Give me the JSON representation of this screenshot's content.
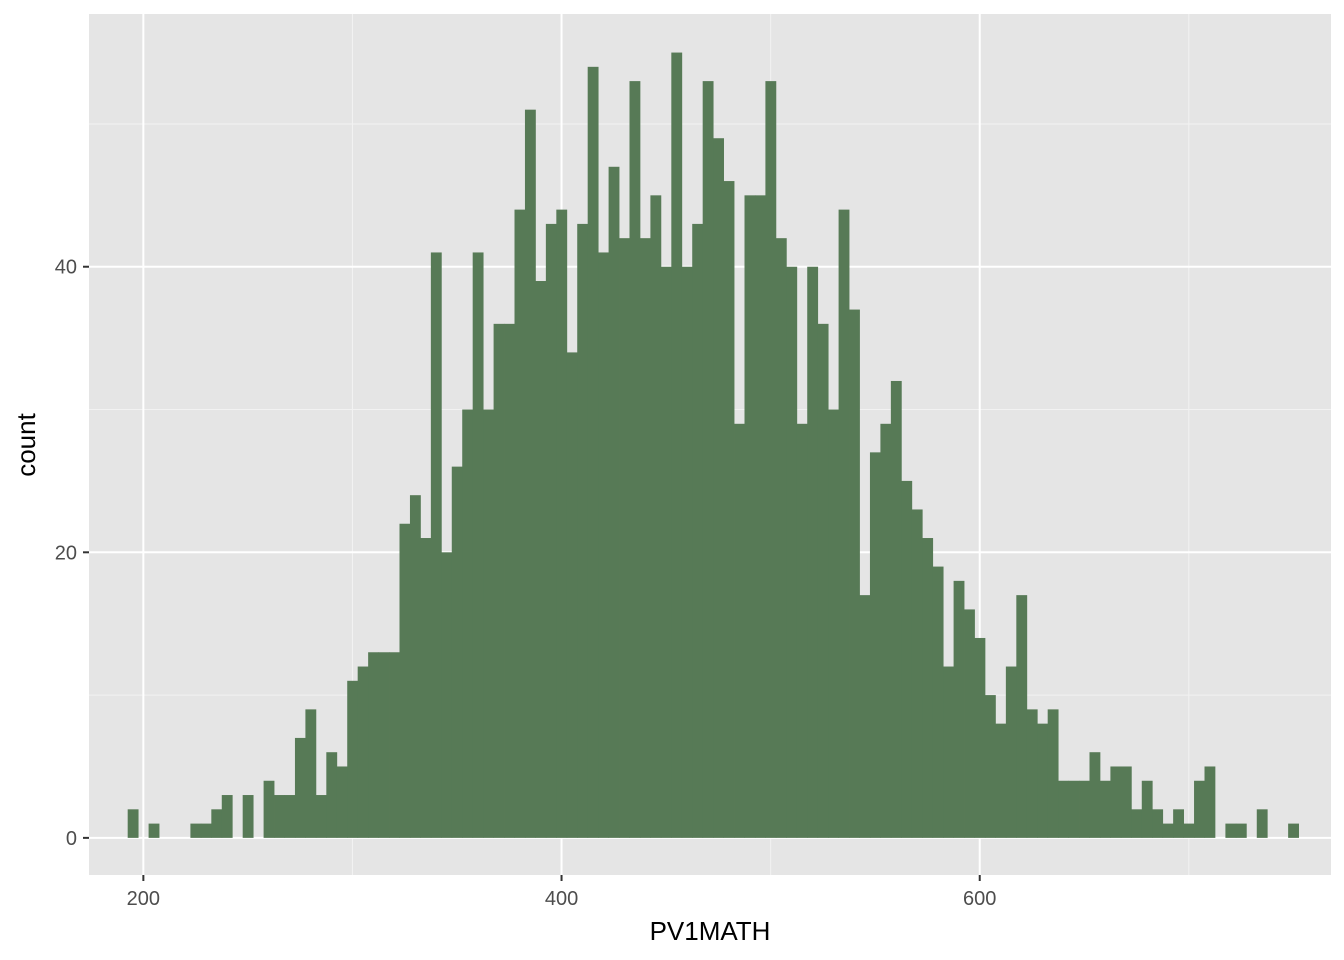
{
  "chart_data": {
    "type": "bar",
    "subtype": "histogram",
    "title": "",
    "xlabel": "PV1MATH",
    "ylabel": "count",
    "xlim": [
      174,
      768
    ],
    "ylim": [
      -2.6,
      57.7
    ],
    "x_ticks": [
      200,
      400,
      600
    ],
    "x_tick_labels": [
      "200",
      "400",
      "600"
    ],
    "y_ticks": [
      0,
      20,
      40
    ],
    "y_tick_labels": [
      "0",
      "20",
      "40"
    ],
    "grid": true,
    "bin_width": 5,
    "bin_start": 192.5,
    "values": [
      2,
      0,
      1,
      0,
      0,
      0,
      1,
      1,
      2,
      3,
      0,
      3,
      0,
      4,
      3,
      3,
      7,
      9,
      3,
      6,
      5,
      11,
      12,
      13,
      13,
      13,
      22,
      24,
      21,
      41,
      20,
      26,
      30,
      41,
      30,
      36,
      36,
      44,
      51,
      39,
      43,
      44,
      34,
      43,
      54,
      41,
      47,
      42,
      53,
      42,
      45,
      40,
      55,
      40,
      43,
      53,
      49,
      46,
      29,
      45,
      45,
      53,
      42,
      40,
      29,
      40,
      36,
      30,
      44,
      37,
      17,
      27,
      29,
      32,
      25,
      23,
      21,
      19,
      12,
      18,
      16,
      14,
      10,
      8,
      12,
      17,
      9,
      8,
      9,
      4,
      4,
      4,
      6,
      4,
      5,
      5,
      2,
      4,
      2,
      1,
      2,
      1,
      4,
      5,
      0,
      1,
      1,
      0,
      2,
      0,
      0,
      1
    ],
    "colors": {
      "bar": "#577a56",
      "panel": "#e5e5e5",
      "grid_major": "#ffffff",
      "grid_minor": "#f2f2f2",
      "axis_text": "#4d4d4d",
      "tick": "#333333"
    }
  }
}
